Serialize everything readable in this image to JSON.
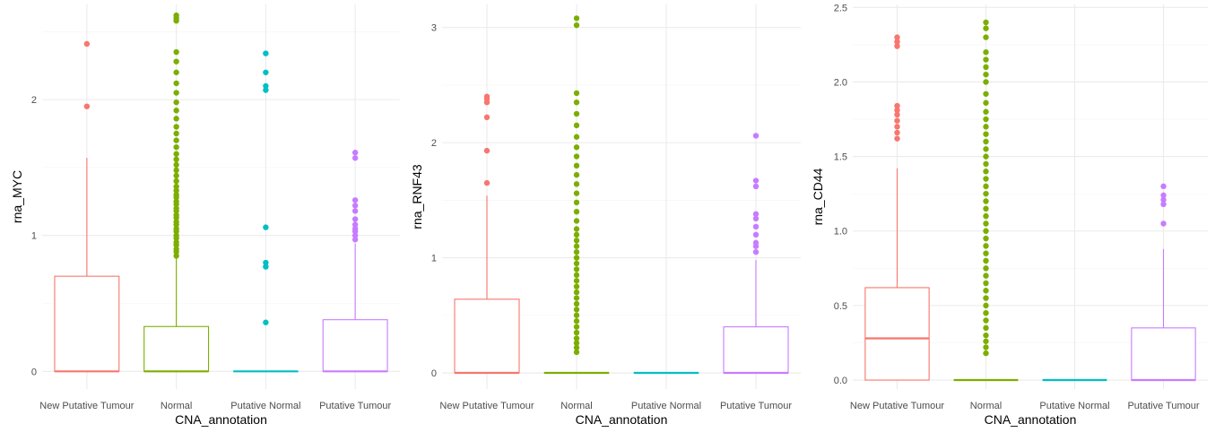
{
  "chart_data": [
    {
      "type": "box",
      "xlabel": "CNA_annotation",
      "ylabel": "rna_MYC",
      "ylim": [
        -0.13,
        2.7
      ],
      "y_ticks": [
        0,
        1,
        2
      ],
      "y_tick_labels": [
        "0",
        "1",
        "2"
      ],
      "grid": true,
      "categories": [
        "New Putative Tumour",
        "Normal",
        "Putative Normal",
        "Putative Tumour"
      ],
      "series": [
        {
          "color": "#F8766D",
          "q1": 0,
          "median": 0,
          "q3": 0.7,
          "whisker_low": 0,
          "whisker_high": 1.57,
          "outliers": [
            1.95,
            2.41
          ]
        },
        {
          "color": "#7CAE00",
          "q1": 0,
          "median": 0,
          "q3": 0.33,
          "whisker_low": 0,
          "whisker_high": 0.83,
          "outliers": [
            0.85,
            0.88,
            0.9,
            0.93,
            0.95,
            0.98,
            1.0,
            1.03,
            1.05,
            1.08,
            1.1,
            1.13,
            1.15,
            1.18,
            1.2,
            1.23,
            1.25,
            1.28,
            1.3,
            1.33,
            1.36,
            1.4,
            1.44,
            1.48,
            1.52,
            1.56,
            1.6,
            1.65,
            1.7,
            1.75,
            1.8,
            1.86,
            1.92,
            1.98,
            2.05,
            2.12,
            2.2,
            2.28,
            2.35,
            2.58,
            2.6,
            2.62
          ]
        },
        {
          "color": "#00BFC4",
          "q1": 0,
          "median": 0,
          "q3": 0,
          "whisker_low": 0,
          "whisker_high": 0,
          "outliers": [
            0.36,
            0.77,
            0.8,
            1.06,
            2.07,
            2.1,
            2.2,
            2.34
          ]
        },
        {
          "color": "#C77CFF",
          "q1": 0,
          "median": 0,
          "q3": 0.38,
          "whisker_low": 0,
          "whisker_high": 0.94,
          "outliers": [
            0.97,
            1.0,
            1.03,
            1.05,
            1.08,
            1.12,
            1.18,
            1.22,
            1.26,
            1.57,
            1.61
          ]
        }
      ]
    },
    {
      "type": "box",
      "xlabel": "CNA_annotation",
      "ylabel": "rna_RNF43",
      "ylim": [
        -0.14,
        3.2
      ],
      "y_ticks": [
        0,
        1,
        2,
        3
      ],
      "y_tick_labels": [
        "0",
        "1",
        "2",
        "3"
      ],
      "grid": true,
      "categories": [
        "New Putative Tumour",
        "Normal",
        "Putative Normal",
        "Putative Tumour"
      ],
      "series": [
        {
          "color": "#F8766D",
          "q1": 0,
          "median": 0,
          "q3": 0.64,
          "whisker_low": 0,
          "whisker_high": 1.54,
          "outliers": [
            1.65,
            1.93,
            2.22,
            2.35,
            2.38,
            2.4
          ]
        },
        {
          "color": "#7CAE00",
          "q1": 0,
          "median": 0,
          "q3": 0,
          "whisker_low": 0,
          "whisker_high": 0,
          "outliers": [
            0.18,
            0.22,
            0.26,
            0.3,
            0.35,
            0.4,
            0.45,
            0.5,
            0.55,
            0.6,
            0.65,
            0.7,
            0.75,
            0.8,
            0.85,
            0.9,
            0.95,
            1.0,
            1.05,
            1.1,
            1.15,
            1.2,
            1.25,
            1.32,
            1.4,
            1.48,
            1.56,
            1.64,
            1.72,
            1.8,
            1.88,
            1.96,
            2.05,
            2.15,
            2.25,
            2.35,
            2.43,
            3.02,
            3.08
          ]
        },
        {
          "color": "#00BFC4",
          "q1": 0,
          "median": 0,
          "q3": 0,
          "whisker_low": 0,
          "whisker_high": 0,
          "outliers": []
        },
        {
          "color": "#C77CFF",
          "q1": 0,
          "median": 0,
          "q3": 0.4,
          "whisker_low": 0,
          "whisker_high": 0.98,
          "outliers": [
            1.05,
            1.1,
            1.13,
            1.2,
            1.27,
            1.34,
            1.38,
            1.62,
            1.67,
            2.06
          ]
        }
      ]
    },
    {
      "type": "box",
      "xlabel": "CNA_annotation",
      "ylabel": "rna_CD44",
      "ylim": [
        -0.06,
        2.52
      ],
      "y_ticks": [
        0,
        0.5,
        1,
        1.5,
        2,
        2.5
      ],
      "y_tick_labels": [
        "0.0",
        "0.5",
        "1.0",
        "1.5",
        "2.0",
        "2.5"
      ],
      "grid": true,
      "categories": [
        "New Putative Tumour",
        "Normal",
        "Putative Normal",
        "Putative Tumour"
      ],
      "series": [
        {
          "color": "#F8766D",
          "q1": 0,
          "median": 0.28,
          "q3": 0.62,
          "whisker_low": 0,
          "whisker_high": 1.42,
          "outliers": [
            1.62,
            1.66,
            1.7,
            1.74,
            1.78,
            1.81,
            1.84,
            2.24,
            2.27,
            2.3
          ]
        },
        {
          "color": "#7CAE00",
          "q1": 0,
          "median": 0,
          "q3": 0,
          "whisker_low": 0,
          "whisker_high": 0,
          "outliers": [
            0.18,
            0.22,
            0.26,
            0.3,
            0.35,
            0.4,
            0.45,
            0.5,
            0.55,
            0.6,
            0.65,
            0.7,
            0.75,
            0.8,
            0.85,
            0.9,
            0.95,
            1.0,
            1.05,
            1.1,
            1.15,
            1.2,
            1.25,
            1.3,
            1.35,
            1.4,
            1.45,
            1.5,
            1.55,
            1.6,
            1.65,
            1.7,
            1.75,
            1.8,
            1.86,
            1.92,
            2.0,
            2.05,
            2.1,
            2.15,
            2.2,
            2.3,
            2.36,
            2.4
          ]
        },
        {
          "color": "#00BFC4",
          "q1": 0,
          "median": 0,
          "q3": 0,
          "whisker_low": 0,
          "whisker_high": 0,
          "outliers": []
        },
        {
          "color": "#C77CFF",
          "q1": 0,
          "median": 0,
          "q3": 0.35,
          "whisker_low": 0,
          "whisker_high": 0.88,
          "outliers": [
            1.05,
            1.18,
            1.21,
            1.24,
            1.3
          ]
        }
      ]
    }
  ]
}
